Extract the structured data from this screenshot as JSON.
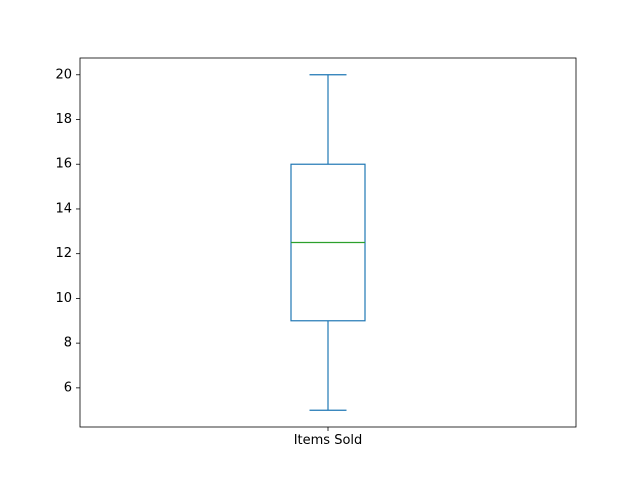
{
  "chart_data": {
    "type": "box",
    "title": "",
    "xlabel": "",
    "ylabel": "",
    "categories": [
      "Items Sold"
    ],
    "series": [
      {
        "name": "Items Sold",
        "whisker_low": 5,
        "q1": 9,
        "median": 12.5,
        "q3": 16,
        "whisker_high": 20
      }
    ],
    "ylim": [
      4.25,
      20.75
    ],
    "yticks": [
      6,
      8,
      10,
      12,
      14,
      16,
      18,
      20
    ],
    "grid": false,
    "colors": {
      "box": "#1f77b4",
      "median": "#2ca02c",
      "axis": "#000000"
    }
  }
}
